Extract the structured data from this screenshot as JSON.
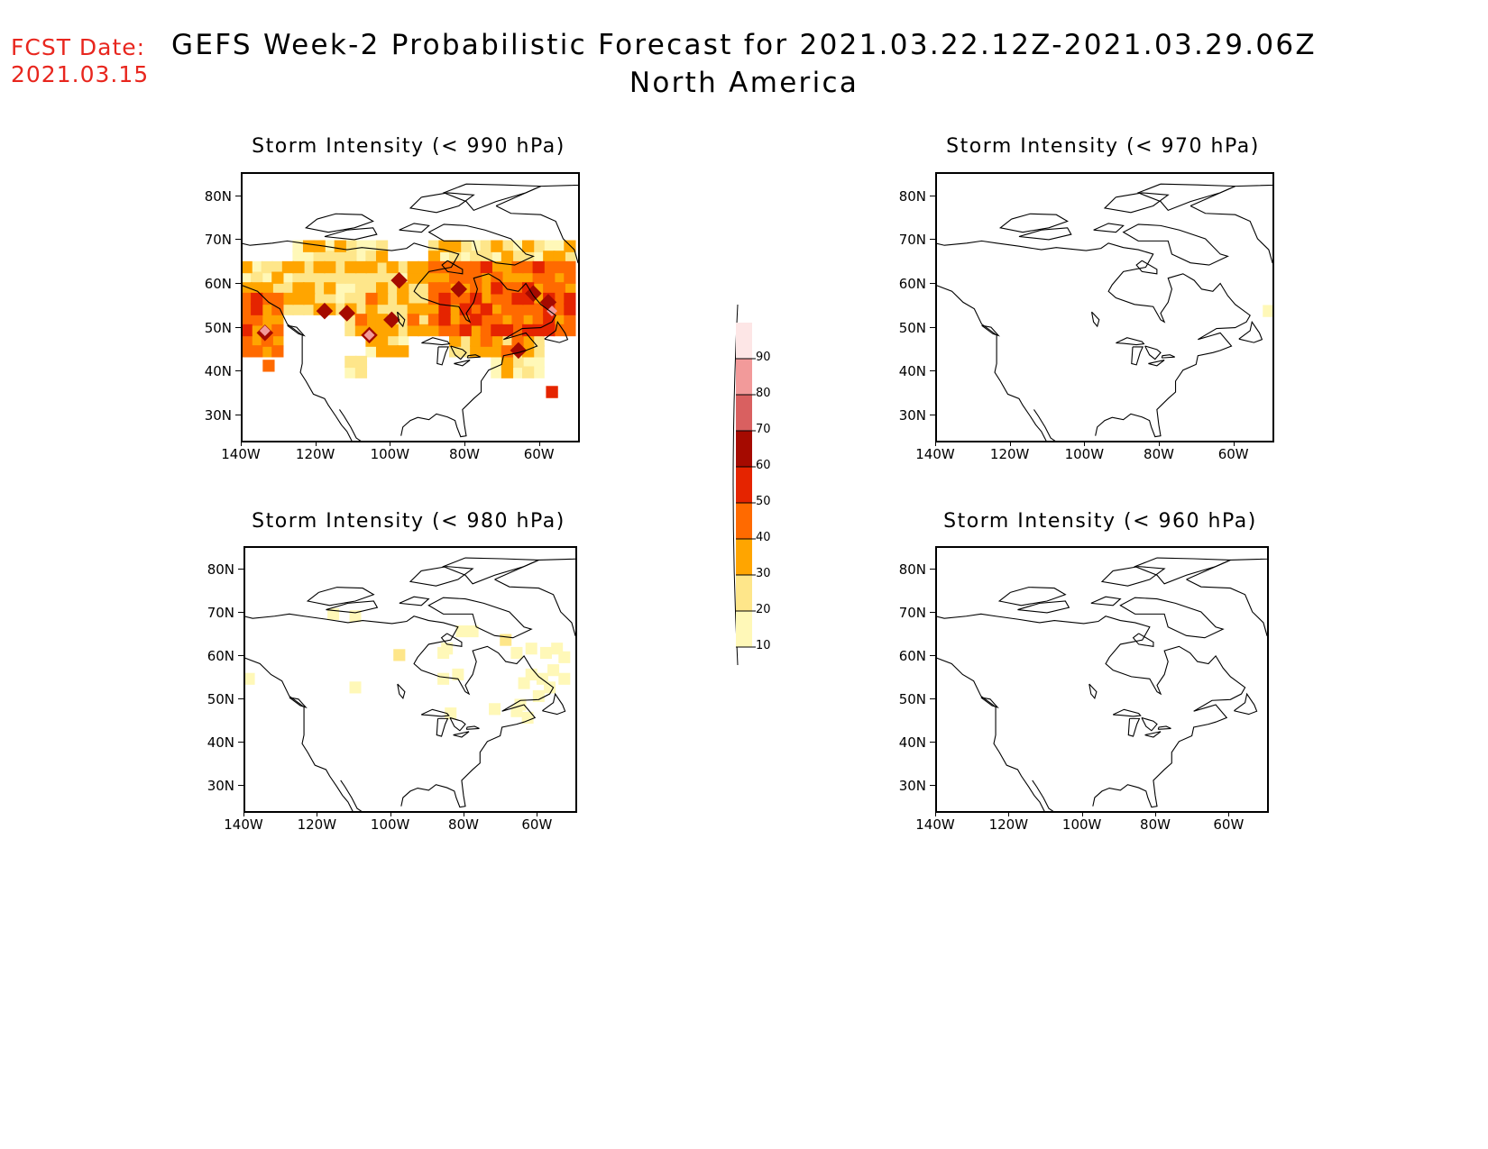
{
  "header": {
    "fcst_label": "FCST Date:",
    "fcst_date": "2021.03.15",
    "title_line1": "GEFS Week-2 Probabilistic Forecast for 2021.03.22.12Z-2021.03.29.06Z",
    "title_line2": "North America"
  },
  "panels": [
    {
      "id": "p990",
      "title": "Storm Intensity (< 990 hPa)",
      "coverage": "high"
    },
    {
      "id": "p970",
      "title": "Storm Intensity (< 970 hPa)",
      "coverage": "trace"
    },
    {
      "id": "p980",
      "title": "Storm Intensity (< 980 hPa)",
      "coverage": "low"
    },
    {
      "id": "p960",
      "title": "Storm Intensity (< 960 hPa)",
      "coverage": "none"
    }
  ],
  "axes": {
    "lat_labels": [
      "80N",
      "70N",
      "60N",
      "50N",
      "40N",
      "30N"
    ],
    "lon_labels": [
      "140W",
      "120W",
      "100W",
      "80W",
      "60W"
    ]
  },
  "colorbar": {
    "levels": [
      "10",
      "20",
      "30",
      "40",
      "50",
      "60",
      "70",
      "80",
      "90"
    ],
    "colors": [
      "#fff8b8",
      "#fee68a",
      "#ffa500",
      "#ff6a00",
      "#e52400",
      "#a50a00",
      "#d96060",
      "#f29a9a",
      "#fde6e6"
    ]
  }
}
